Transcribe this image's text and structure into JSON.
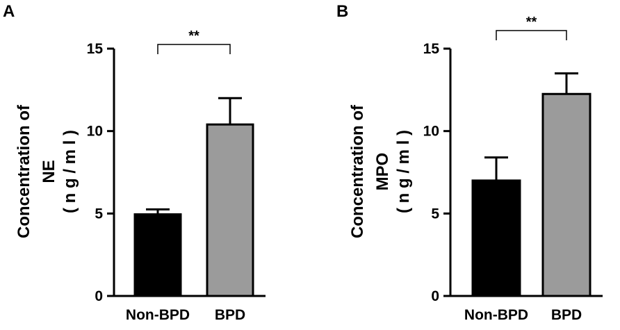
{
  "chart_data": [
    {
      "panel": "A",
      "type": "bar",
      "categories": [
        "Non-BPD",
        "BPD"
      ],
      "values": [
        4.95,
        10.4
      ],
      "errors": [
        0.3,
        1.6
      ],
      "colors": [
        "#000000",
        "#9b9b9b"
      ],
      "ylabel_lines": [
        "Concentration of",
        "NE",
        "( n g / m l )"
      ],
      "yticks": [
        "0",
        "5",
        "10",
        "15"
      ],
      "ylim": [
        0,
        15
      ],
      "significance": "**"
    },
    {
      "panel": "B",
      "type": "bar",
      "categories": [
        "Non-BPD",
        "BPD"
      ],
      "values": [
        7.0,
        12.25
      ],
      "errors": [
        1.4,
        1.25
      ],
      "colors": [
        "#000000",
        "#9b9b9b"
      ],
      "ylabel_lines": [
        "Concentration of",
        "MPO",
        "( n g / m l )"
      ],
      "yticks": [
        "0",
        "5",
        "10",
        "15"
      ],
      "ylim": [
        0,
        15
      ],
      "significance": "**"
    }
  ]
}
